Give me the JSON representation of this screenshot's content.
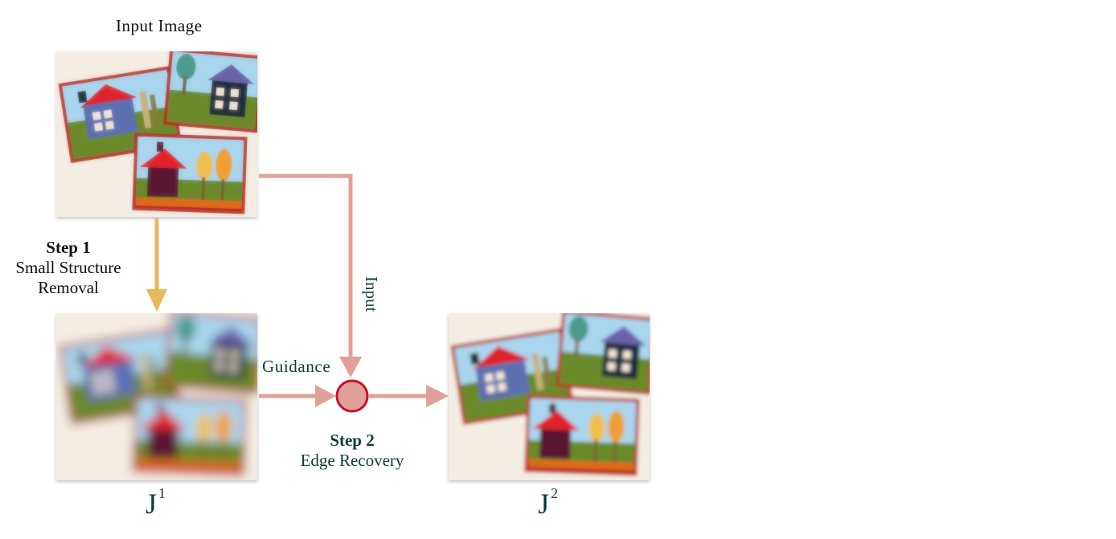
{
  "labels": {
    "input_image": "Input Image",
    "step1_title": "Step 1",
    "step1_line1": "Small Structure",
    "step1_line2": "Removal",
    "input_arrow": "Input",
    "guidance_arrow": "Guidance",
    "step2_title": "Step 2",
    "step2_line1": "Edge Recovery",
    "j1_base": "J",
    "j1_sup": "1",
    "j2_base": "J",
    "j2_sup": "2"
  },
  "colors": {
    "step1_arrow": "#e8b85c",
    "edge_arrow": "#e0a097",
    "node_fill": "#e0a097",
    "node_stroke": "#c8102e",
    "roof": "#e0202a",
    "grass": "#6b8a2a",
    "sky": "#a9d6ee",
    "border": "#b8261e",
    "bg_paper": "#f3ece2"
  }
}
